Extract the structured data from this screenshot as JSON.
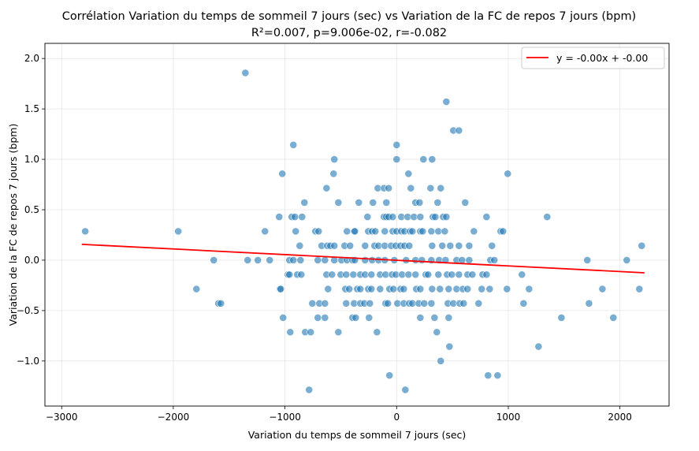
{
  "chart_data": {
    "type": "scatter",
    "title": "Corrélation Variation du temps de sommeil 7 jours (sec) vs Variation de la FC de repos 7 jours (bpm)",
    "subtitle": "R²=0.007, p=9.006e-02, r=-0.082",
    "xlabel": "Variation du temps de sommeil 7 jours (sec)",
    "ylabel": "Variation de la FC de repos 7 jours (bpm)",
    "xlim": [
      -3150,
      2440
    ],
    "ylim": [
      -1.447,
      2.15
    ],
    "xticks": [
      -3000,
      -2000,
      -1000,
      0,
      1000,
      2000
    ],
    "xtick_labels": [
      "−3000",
      "−2000",
      "−1000",
      "0",
      "1000",
      "2000"
    ],
    "yticks": [
      -1.0,
      -0.5,
      0.0,
      0.5,
      1.0,
      1.5,
      2.0
    ],
    "ytick_labels": [
      "−1.0",
      "−0.5",
      "0.0",
      "0.5",
      "1.0",
      "1.5",
      "2.0"
    ],
    "grid": true,
    "legend_position": "top-right",
    "colors": {
      "points": "#1f77b4",
      "regression": "#ff0000"
    },
    "regression": {
      "label": "y = -0.00x + -0.00",
      "slope": -5.6e-05,
      "intercept": -0.001,
      "x_range": [
        -2820,
        2220
      ]
    },
    "rows": [
      {
        "y": 1.857,
        "x": [
          -1355
        ]
      },
      {
        "y": 1.571,
        "x": [
          445
        ]
      },
      {
        "y": 1.286,
        "x": [
          508,
          558
        ]
      },
      {
        "y": 1.143,
        "x": [
          -925,
          0
        ]
      },
      {
        "y": 1.0,
        "x": [
          -558,
          0,
          240,
          318
        ]
      },
      {
        "y": 0.857,
        "x": [
          -1024,
          -565,
          106,
          995
        ]
      },
      {
        "y": 0.714,
        "x": [
          -628,
          -169,
          -113,
          -71,
          127,
          304,
          395
        ]
      },
      {
        "y": 0.571,
        "x": [
          -826,
          -522,
          -339,
          -212,
          -92,
          169,
          205,
          367,
          614
        ]
      },
      {
        "y": 0.429,
        "x": [
          -1052,
          -939,
          -911,
          -847,
          -261,
          -113,
          -92,
          -71,
          -35,
          42,
          99,
          155,
          212,
          325,
          346,
          417,
          445,
          805,
          1348
        ]
      },
      {
        "y": 0.286,
        "x": [
          -2789,
          -1956,
          -1179,
          -904,
          -727,
          -699,
          -445,
          -381,
          -374,
          -254,
          -219,
          -191,
          -106,
          -35,
          0,
          42,
          71,
          120,
          141,
          212,
          233,
          311,
          374,
          431,
          692,
          932,
          953
        ]
      },
      {
        "y": 0.143,
        "x": [
          -868,
          -671,
          -621,
          -593,
          -558,
          -466,
          -417,
          -282,
          -198,
          -162,
          -106,
          -49,
          -7,
          35,
          71,
          113,
          318,
          409,
          480,
          558,
          650,
          854,
          2195
        ]
      },
      {
        "y": 0.0,
        "x": [
          -1638,
          -1334,
          -1243,
          -1137,
          -960,
          -925,
          -861,
          -706,
          -642,
          -558,
          -494,
          -445,
          -395,
          -374,
          -282,
          -219,
          -162,
          -106,
          -21,
          85,
          169,
          226,
          311,
          381,
          438,
          537,
          586,
          650,
          840,
          875,
          1708,
          2061
        ]
      },
      {
        "y": -0.143,
        "x": [
          -974,
          -960,
          -890,
          -854,
          -628,
          -579,
          -501,
          -452,
          -388,
          -325,
          -282,
          -226,
          -148,
          -99,
          -42,
          -7,
          49,
          106,
          169,
          261,
          282,
          374,
          452,
          494,
          558,
          635,
          678,
          770,
          805,
          1122
        ]
      },
      {
        "y": -0.286,
        "x": [
          -1793,
          -1045,
          -1038,
          -614,
          -459,
          -424,
          -353,
          -325,
          -254,
          -226,
          -148,
          -64,
          -28,
          35,
          64,
          176,
          212,
          318,
          388,
          466,
          537,
          593,
          635,
          762,
          833,
          988,
          1186,
          1843,
          2174
        ]
      },
      {
        "y": -0.429,
        "x": [
          -1596,
          -1574,
          -755,
          -692,
          -642,
          -452,
          -381,
          -325,
          -289,
          -240,
          -99,
          -78,
          7,
          64,
          113,
          141,
          198,
          247,
          311,
          459,
          508,
          565,
          600,
          734,
          1137,
          1723
        ]
      },
      {
        "y": -0.571,
        "x": [
          -1017,
          -706,
          -642,
          -395,
          -367,
          -247,
          212,
          339,
          466,
          1476,
          1941
        ]
      },
      {
        "y": -0.714,
        "x": [
          -953,
          -819,
          -770,
          -522,
          -176,
          360
        ]
      },
      {
        "y": -0.857,
        "x": [
          473,
          1271
        ]
      },
      {
        "y": -1.0,
        "x": [
          395
        ]
      },
      {
        "y": -1.143,
        "x": [
          -64,
          819,
          904
        ]
      },
      {
        "y": -1.286,
        "x": [
          -784,
          78
        ]
      }
    ]
  }
}
